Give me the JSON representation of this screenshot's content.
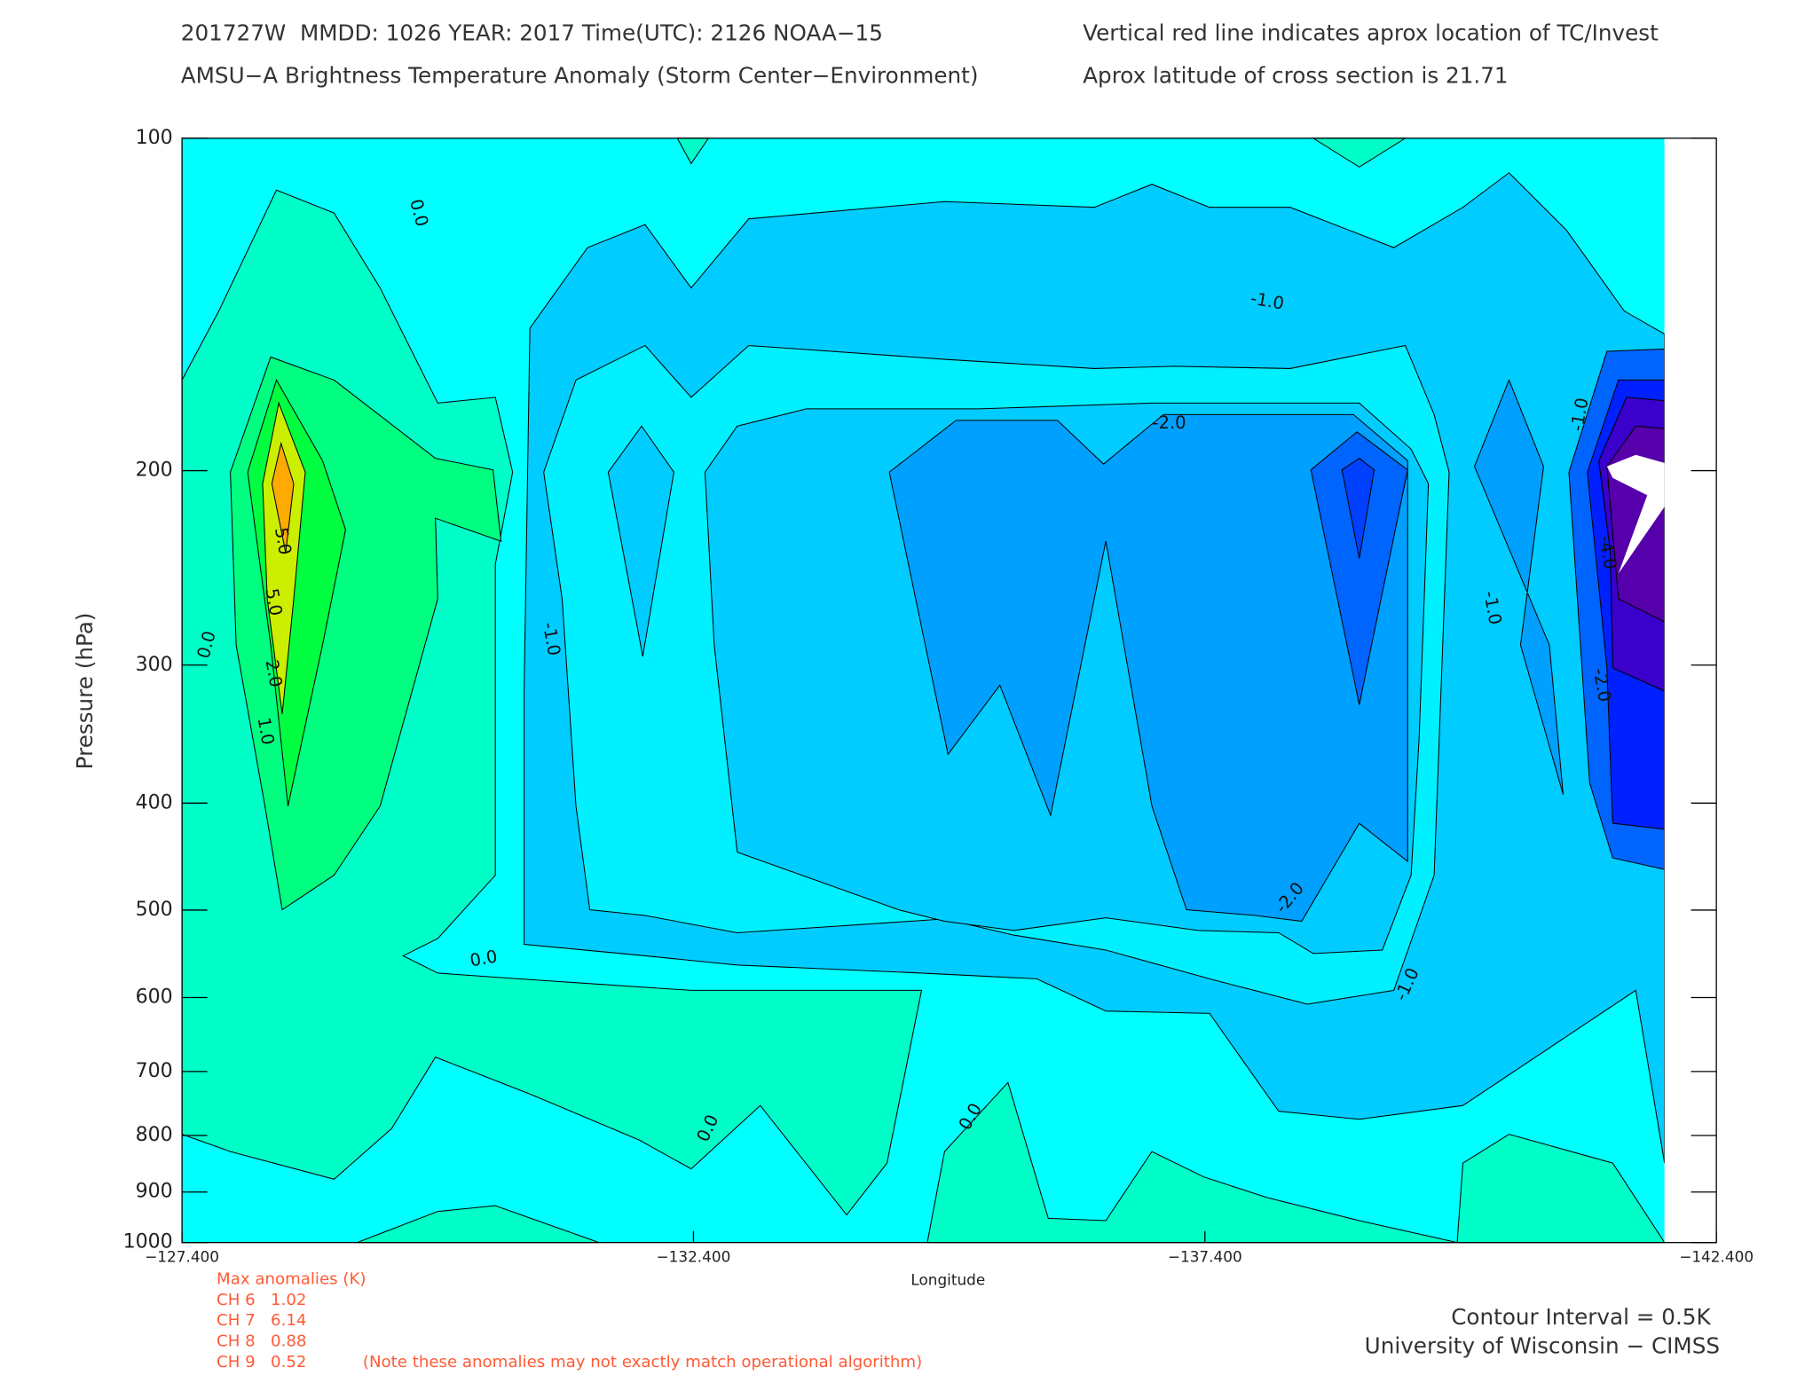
{
  "chart_data": {
    "type": "contour",
    "title_lines": [
      "201727W  MMDD: 1026 YEAR: 2017 Time(UTC): 2126 NOAA−15",
      "AMSU−A Brightness Temperature Anomaly (Storm Center−Environment)"
    ],
    "notes_right": [
      "Vertical red line indicates aprox location of TC/Invest",
      "Aprox latitude of cross section is 21.71"
    ],
    "xlabel": "Longitude",
    "ylabel": "Pressure (hPa)",
    "xlim": [
      -127.4,
      -142.4
    ],
    "xticks": [
      {
        "value": -127.4,
        "label": "−127.400"
      },
      {
        "value": -132.4,
        "label": "−132.400"
      },
      {
        "value": -137.4,
        "label": "−137.400"
      },
      {
        "value": -142.4,
        "label": "−142.400"
      }
    ],
    "ylim": [
      100,
      1000
    ],
    "ylog": true,
    "yticks": [
      100,
      200,
      300,
      400,
      500,
      600,
      700,
      800,
      900,
      1000
    ],
    "contour_labels": [
      {
        "value": 0,
        "label": "0.0"
      },
      {
        "value": 0,
        "label": "0.0"
      },
      {
        "value": 0,
        "label": "0.0"
      },
      {
        "value": 0,
        "label": "0.0"
      },
      {
        "value": 0,
        "label": "0.0"
      },
      {
        "value": -1,
        "label": "-1.0"
      },
      {
        "value": -1,
        "label": "-1.0"
      },
      {
        "value": -1,
        "label": "-1.0"
      },
      {
        "value": -1,
        "label": "-1.0"
      },
      {
        "value": -1,
        "label": "-1.0"
      },
      {
        "value": -2,
        "label": "-2.0"
      },
      {
        "value": -2,
        "label": "-2.0"
      },
      {
        "value": -2,
        "label": "-2.0"
      },
      {
        "value": -4,
        "label": "-4.0"
      },
      {
        "value": 5,
        "label": "5.0"
      },
      {
        "value": 5,
        "label": "5.0"
      },
      {
        "value": 2,
        "label": "2.0"
      },
      {
        "value": 1,
        "label": "1.0"
      }
    ],
    "max_anomalies": {
      "title": "Max anomalies (K)",
      "rows": [
        {
          "channel": "CH 6",
          "value": 1.02
        },
        {
          "channel": "CH 7",
          "value": 6.14
        },
        {
          "channel": "CH 8",
          "value": 0.88
        },
        {
          "channel": "CH 9",
          "value": 0.52
        }
      ],
      "note": "(Note these anomalies may not exactly match operational algorithm)"
    },
    "contour_interval": "Contour Interval = 0.5K",
    "credit": "University of Wisconsin − CIMSS"
  }
}
